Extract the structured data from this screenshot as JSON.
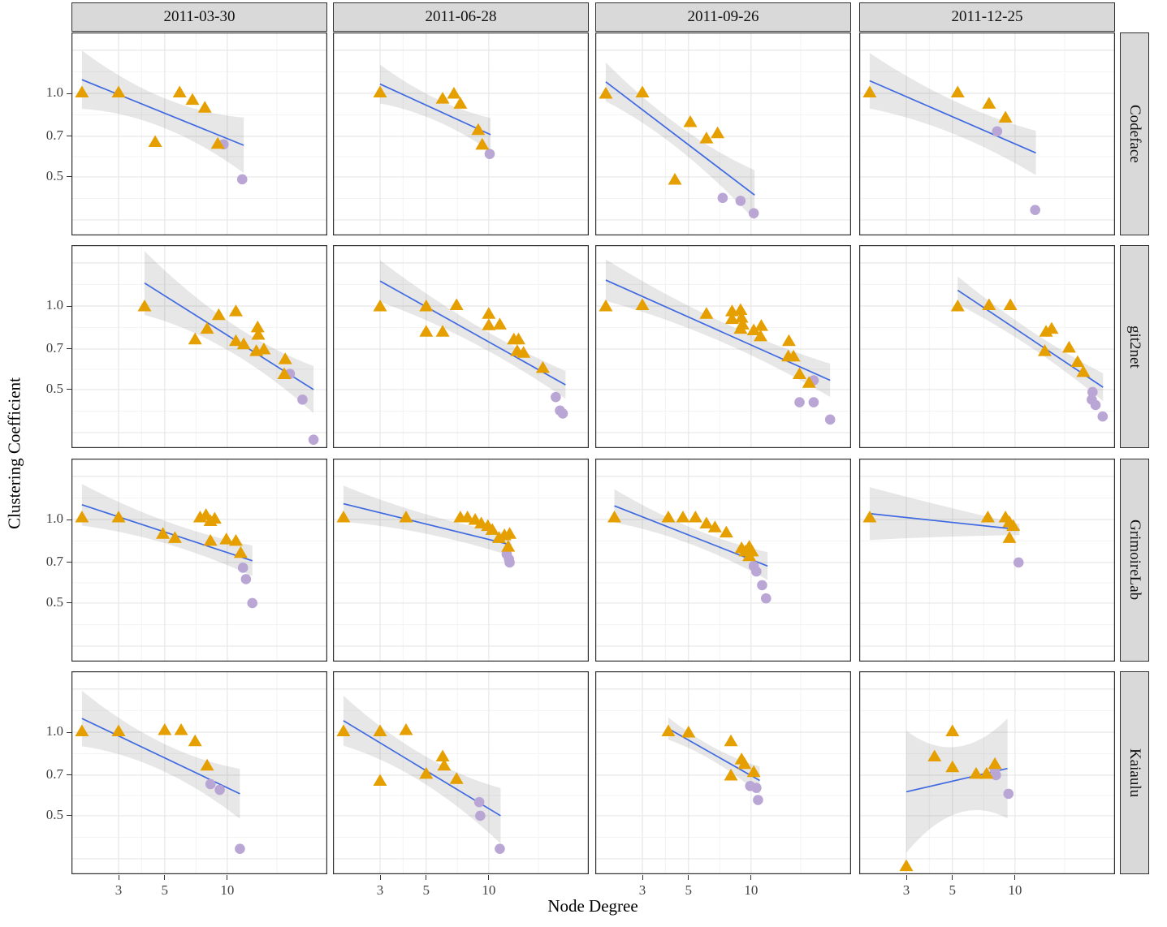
{
  "chart_data": {
    "type": "scatter",
    "title": "",
    "xlabel": "Node Degree",
    "ylabel": "Clustering Coefficient",
    "x_scale": "log",
    "y_scale": "log",
    "x_ticks": [
      3,
      5,
      10
    ],
    "x_tick_labels": [
      "3",
      "5",
      "10"
    ],
    "y_ticks": [
      1.0,
      0.7,
      0.5
    ],
    "y_tick_labels": [
      "1.0",
      "0.7",
      "0.5"
    ],
    "x_domain": [
      1.78,
      29.7
    ],
    "y_domain": [
      0.308,
      1.66
    ],
    "x_gridlines_major": [
      3,
      5,
      10,
      30
    ],
    "x_gridlines_minor": [
      1.73,
      3.87,
      7.07,
      17.32
    ],
    "y_gridlines_major": [
      0.35,
      0.5,
      0.7,
      1.0,
      1.43
    ],
    "y_gridlines_minor": [
      0.418,
      0.592,
      0.837,
      1.196
    ],
    "grid": true,
    "legend": "none",
    "col_facets": [
      "2011-03-30",
      "2011-06-28",
      "2011-09-26",
      "2011-12-25"
    ],
    "row_facets": [
      "Codeface",
      "git2net",
      "GrimoireLab",
      "Kaiaulu"
    ],
    "colors": {
      "triangle": "#E69F00",
      "circle": "#B9A6D4",
      "trend_line": "#3F69E1",
      "confidence_band": "rgba(120,120,120,0.18)",
      "strip_background": "#D9D9D9",
      "panel_border": "#2F2F2F",
      "grid_major": "#E7E7E7",
      "grid_minor": "#F3F3F3"
    },
    "panels": [
      {
        "row": "Codeface",
        "col": "2011-03-30",
        "triangles": [
          [
            2,
            1.01
          ],
          [
            3,
            1.01
          ],
          [
            4.5,
            0.67
          ],
          [
            5.9,
            1.01
          ],
          [
            6.8,
            0.95
          ],
          [
            7.8,
            0.89
          ],
          [
            9,
            0.66
          ]
        ],
        "circles": [
          [
            9.6,
            0.655
          ],
          [
            11.8,
            0.49
          ]
        ],
        "trend": [
          [
            2,
            1.12
          ],
          [
            12,
            0.65
          ]
        ],
        "band": [
          0.105,
          0.05,
          0.1
        ]
      },
      {
        "row": "Codeface",
        "col": "2011-06-28",
        "triangles": [
          [
            3,
            1.01
          ],
          [
            6,
            0.96
          ],
          [
            6.8,
            1.0
          ],
          [
            7.3,
            0.92
          ],
          [
            8.9,
            0.74
          ],
          [
            9.3,
            0.655
          ]
        ],
        "circles": [
          [
            10.1,
            0.605
          ]
        ],
        "trend": [
          [
            3,
            1.08
          ],
          [
            10.2,
            0.71
          ]
        ],
        "band": [
          0.07,
          0.04,
          0.06
        ]
      },
      {
        "row": "Codeface",
        "col": "2011-09-26",
        "triangles": [
          [
            2,
            1.0
          ],
          [
            3,
            1.01
          ],
          [
            5.1,
            0.79
          ],
          [
            6.1,
            0.69
          ],
          [
            6.9,
            0.72
          ],
          [
            4.3,
            0.49
          ]
        ],
        "circles": [
          [
            7.3,
            0.42
          ],
          [
            8.9,
            0.41
          ],
          [
            10.3,
            0.37
          ]
        ],
        "trend": [
          [
            2,
            1.1
          ],
          [
            10.4,
            0.43
          ]
        ],
        "band": [
          0.07,
          0.035,
          0.09
        ]
      },
      {
        "row": "Codeface",
        "col": "2011-12-25",
        "triangles": [
          [
            2,
            1.01
          ],
          [
            5.3,
            1.01
          ],
          [
            7.5,
            0.92
          ],
          [
            9,
            0.82
          ]
        ],
        "circles": [
          [
            8.2,
            0.73
          ],
          [
            12.5,
            0.38
          ]
        ],
        "trend": [
          [
            2,
            1.11
          ],
          [
            12.6,
            0.61
          ]
        ],
        "band": [
          0.1,
          0.06,
          0.08
        ]
      },
      {
        "row": "git2net",
        "col": "2011-03-30",
        "triangles": [
          [
            4,
            1.0
          ],
          [
            9.1,
            0.93
          ],
          [
            11,
            0.96
          ],
          [
            8,
            0.83
          ],
          [
            7,
            0.76
          ],
          [
            11,
            0.75
          ],
          [
            12,
            0.73
          ],
          [
            14,
            0.84
          ],
          [
            14.1,
            0.79
          ],
          [
            13.8,
            0.69
          ],
          [
            15,
            0.7
          ],
          [
            19,
            0.645
          ],
          [
            18.8,
            0.57
          ]
        ],
        "circles": [
          [
            20,
            0.57
          ],
          [
            23,
            0.46
          ],
          [
            26,
            0.33
          ]
        ],
        "trend": [
          [
            4,
            1.21
          ],
          [
            26,
            0.5
          ]
        ],
        "band": [
          0.115,
          0.045,
          0.085
        ]
      },
      {
        "row": "git2net",
        "col": "2011-06-28",
        "triangles": [
          [
            3,
            1.0
          ],
          [
            5,
            1.0
          ],
          [
            7,
            1.01
          ],
          [
            10,
            0.94
          ],
          [
            10,
            0.855
          ],
          [
            11.3,
            0.86
          ],
          [
            5,
            0.81
          ],
          [
            6,
            0.81
          ],
          [
            13.2,
            0.76
          ],
          [
            13.9,
            0.76
          ],
          [
            13.7,
            0.69
          ],
          [
            14.7,
            0.68
          ],
          [
            18.2,
            0.6
          ]
        ],
        "circles": [
          [
            21,
            0.47
          ],
          [
            22,
            0.42
          ],
          [
            22.7,
            0.41
          ]
        ],
        "trend": [
          [
            3,
            1.23
          ],
          [
            23.4,
            0.52
          ]
        ],
        "band": [
          0.075,
          0.035,
          0.05
        ]
      },
      {
        "row": "git2net",
        "col": "2011-09-26",
        "triangles": [
          [
            2,
            1.0
          ],
          [
            3,
            1.01
          ],
          [
            6.1,
            0.94
          ],
          [
            8.1,
            0.96
          ],
          [
            8.1,
            0.9
          ],
          [
            8.9,
            0.97
          ],
          [
            9,
            0.91
          ],
          [
            9.1,
            0.86
          ],
          [
            8.9,
            0.83
          ],
          [
            10.3,
            0.82
          ],
          [
            11.2,
            0.85
          ],
          [
            11.1,
            0.78
          ],
          [
            15.2,
            0.75
          ],
          [
            15.1,
            0.66
          ],
          [
            16,
            0.66
          ],
          [
            17.1,
            0.57
          ],
          [
            19,
            0.53
          ]
        ],
        "circles": [
          [
            20,
            0.54
          ],
          [
            17.1,
            0.45
          ],
          [
            20,
            0.45
          ],
          [
            24,
            0.39
          ]
        ],
        "trend": [
          [
            2,
            1.24
          ],
          [
            24,
            0.54
          ]
        ],
        "band": [
          0.075,
          0.03,
          0.06
        ]
      },
      {
        "row": "git2net",
        "col": "2011-12-25",
        "triangles": [
          [
            5.3,
            1.0
          ],
          [
            7.5,
            1.01
          ],
          [
            9.5,
            1.01
          ],
          [
            14.1,
            0.81
          ],
          [
            15,
            0.83
          ],
          [
            13.9,
            0.69
          ],
          [
            18.2,
            0.71
          ],
          [
            20,
            0.63
          ],
          [
            21.3,
            0.58
          ]
        ],
        "circles": [
          [
            23.6,
            0.49
          ],
          [
            23.4,
            0.46
          ],
          [
            24.4,
            0.44
          ],
          [
            26.4,
            0.4
          ]
        ],
        "trend": [
          [
            5.3,
            1.14
          ],
          [
            26.5,
            0.51
          ]
        ],
        "band": [
          0.05,
          0.03,
          0.05
        ]
      },
      {
        "row": "GrimoireLab",
        "col": "2011-03-30",
        "triangles": [
          [
            2,
            1.02
          ],
          [
            3,
            1.02
          ],
          [
            4.9,
            0.89
          ],
          [
            5.6,
            0.86
          ],
          [
            7.4,
            1.02
          ],
          [
            7.9,
            1.04
          ],
          [
            8.3,
            0.99
          ],
          [
            8.7,
            1.01
          ],
          [
            8.3,
            0.84
          ],
          [
            9.9,
            0.85
          ],
          [
            11,
            0.84
          ],
          [
            11.6,
            0.76
          ]
        ],
        "circles": [
          [
            11.9,
            0.67
          ],
          [
            12.3,
            0.61
          ],
          [
            13.2,
            0.5
          ]
        ],
        "trend": [
          [
            2,
            1.13
          ],
          [
            13.2,
            0.71
          ]
        ],
        "band": [
          0.075,
          0.04,
          0.055
        ]
      },
      {
        "row": "GrimoireLab",
        "col": "2011-06-28",
        "triangles": [
          [
            2,
            1.02
          ],
          [
            4,
            1.02
          ],
          [
            7.3,
            1.02
          ],
          [
            7.9,
            1.02
          ],
          [
            8.6,
            1.0
          ],
          [
            9.2,
            0.97
          ],
          [
            9.9,
            0.95
          ],
          [
            10.4,
            0.92
          ],
          [
            11.2,
            0.86
          ],
          [
            11.9,
            0.88
          ],
          [
            12.6,
            0.89
          ],
          [
            12.4,
            0.8
          ]
        ],
        "circles": [
          [
            12.2,
            0.75
          ],
          [
            12.5,
            0.72
          ],
          [
            12.6,
            0.7
          ]
        ],
        "trend": [
          [
            2,
            1.14
          ],
          [
            12.8,
            0.81
          ]
        ],
        "band": [
          0.065,
          0.035,
          0.04
        ]
      },
      {
        "row": "GrimoireLab",
        "col": "2011-09-26",
        "triangles": [
          [
            2.2,
            1.02
          ],
          [
            4,
            1.02
          ],
          [
            4.7,
            1.02
          ],
          [
            5.4,
            1.02
          ],
          [
            6.1,
            0.97
          ],
          [
            6.7,
            0.94
          ],
          [
            7.6,
            0.9
          ],
          [
            9,
            0.79
          ],
          [
            9.4,
            0.77
          ],
          [
            9.8,
            0.8
          ],
          [
            9.8,
            0.74
          ],
          [
            10.1,
            0.77
          ]
        ],
        "circles": [
          [
            10.3,
            0.68
          ],
          [
            10.6,
            0.65
          ],
          [
            11.3,
            0.58
          ],
          [
            11.8,
            0.52
          ]
        ],
        "trend": [
          [
            2.2,
            1.12
          ],
          [
            12,
            0.68
          ]
        ],
        "band": [
          0.06,
          0.03,
          0.05
        ]
      },
      {
        "row": "GrimoireLab",
        "col": "2011-12-25",
        "triangles": [
          [
            2,
            1.02
          ],
          [
            7.4,
            1.02
          ],
          [
            9,
            1.02
          ],
          [
            9.4,
            0.98
          ],
          [
            9.8,
            0.95
          ],
          [
            9.4,
            0.86
          ]
        ],
        "circles": [
          [
            10.4,
            0.7
          ]
        ],
        "trend": [
          [
            2,
            1.05
          ],
          [
            10.5,
            0.92
          ]
        ],
        "band": [
          0.095,
          0.055,
          0.02
        ]
      },
      {
        "row": "Kaiaulu",
        "col": "2011-03-30",
        "triangles": [
          [
            2,
            1.01
          ],
          [
            3,
            1.01
          ],
          [
            5,
            1.02
          ],
          [
            6,
            1.02
          ],
          [
            7,
            0.93
          ],
          [
            8,
            0.76
          ]
        ],
        "circles": [
          [
            8.3,
            0.65
          ],
          [
            9.2,
            0.62
          ],
          [
            11.5,
            0.38
          ]
        ],
        "trend": [
          [
            2,
            1.12
          ],
          [
            11.5,
            0.6
          ]
        ],
        "band": [
          0.1,
          0.05,
          0.09
        ]
      },
      {
        "row": "Kaiaulu",
        "col": "2011-06-28",
        "triangles": [
          [
            2,
            1.01
          ],
          [
            3,
            1.01
          ],
          [
            4,
            1.02
          ],
          [
            3,
            0.67
          ],
          [
            5,
            0.71
          ],
          [
            6,
            0.82
          ],
          [
            6.1,
            0.76
          ],
          [
            7,
            0.68
          ]
        ],
        "circles": [
          [
            9,
            0.56
          ],
          [
            9.1,
            0.5
          ],
          [
            11.3,
            0.38
          ]
        ],
        "trend": [
          [
            2,
            1.1
          ],
          [
            11.4,
            0.5
          ]
        ],
        "band": [
          0.09,
          0.05,
          0.1
        ]
      },
      {
        "row": "Kaiaulu",
        "col": "2011-09-26",
        "triangles": [
          [
            4,
            1.01
          ],
          [
            5,
            1.0
          ],
          [
            8,
            0.93
          ],
          [
            9,
            0.8
          ],
          [
            9.3,
            0.77
          ],
          [
            8,
            0.7
          ],
          [
            10.3,
            0.72
          ]
        ],
        "circles": [
          [
            9.9,
            0.64
          ],
          [
            10.6,
            0.63
          ],
          [
            10.8,
            0.57
          ]
        ],
        "trend": [
          [
            4,
            1.03
          ],
          [
            11,
            0.67
          ]
        ],
        "band": [
          0.04,
          0.025,
          0.05
        ]
      },
      {
        "row": "Kaiaulu",
        "col": "2011-12-25",
        "triangles": [
          [
            5,
            1.01
          ],
          [
            4.1,
            0.82
          ],
          [
            5,
            0.75
          ],
          [
            6.5,
            0.71
          ],
          [
            7.3,
            0.71
          ],
          [
            8,
            0.77
          ],
          [
            3,
            0.33
          ]
        ],
        "circles": [
          [
            8,
            0.73
          ],
          [
            8.1,
            0.7
          ],
          [
            9.3,
            0.6
          ]
        ],
        "trend": [
          [
            3,
            0.61
          ],
          [
            9.2,
            0.74
          ]
        ],
        "band": [
          0.22,
          0.12,
          0.18
        ]
      }
    ]
  }
}
